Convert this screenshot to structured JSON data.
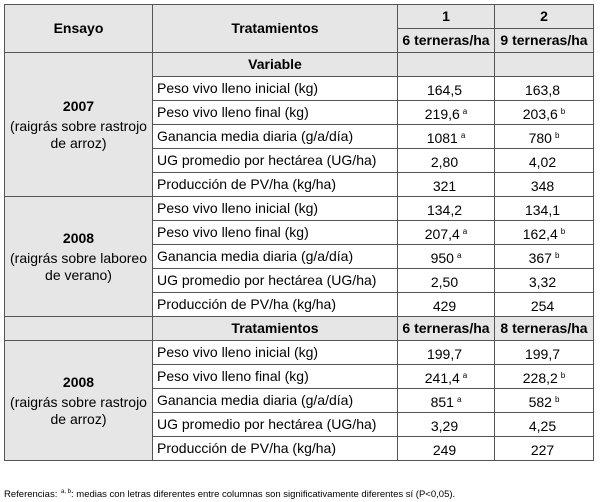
{
  "header": {
    "ensayo": "Ensayo",
    "tratamientos": "Tratamientos",
    "t1_num": "1",
    "t2_num": "2",
    "t1_label": "6 terneras/ha",
    "t2_label": "9 terneras/ha",
    "variable": "Variable"
  },
  "sections": [
    {
      "year": "2007",
      "desc": "(raigrás sobre rastrojo de arroz)",
      "rows": [
        {
          "label": "Peso vivo lleno inicial (kg)",
          "v1": "164,5",
          "s1": "",
          "v2": "163,8",
          "s2": ""
        },
        {
          "label": "Peso vivo lleno final (kg)",
          "v1": "219,6",
          "s1": "a",
          "v2": "203,6",
          "s2": "b"
        },
        {
          "label": "Ganancia media diaria (g/a/día)",
          "v1": "1081",
          "s1": "a",
          "v2": "780",
          "s2": "b"
        },
        {
          "label": "UG promedio por hectárea (UG/ha)",
          "v1": "2,80",
          "s1": "",
          "v2": "4,02",
          "s2": ""
        },
        {
          "label": "Producción de PV/ha (kg/ha)",
          "v1": "321",
          "s1": "",
          "v2": "348",
          "s2": ""
        }
      ]
    },
    {
      "year": "2008",
      "desc": "(raigrás sobre laboreo de verano)",
      "rows": [
        {
          "label": "Peso vivo lleno inicial (kg)",
          "v1": "134,2",
          "s1": "",
          "v2": "134,1",
          "s2": ""
        },
        {
          "label": "Peso vivo lleno final (kg)",
          "v1": "207,4",
          "s1": "a",
          "v2": "162,4",
          "s2": "b"
        },
        {
          "label": "Ganancia media diaria (g/a/día)",
          "v1": "950",
          "s1": "a",
          "v2": "367",
          "s2": "b"
        },
        {
          "label": "UG promedio por hectárea (UG/ha)",
          "v1": "2,50",
          "s1": "",
          "v2": "3,32",
          "s2": ""
        },
        {
          "label": "Producción de PV/ha (kg/ha)",
          "v1": "429",
          "s1": "",
          "v2": "254",
          "s2": ""
        }
      ]
    },
    {
      "year": "2008",
      "desc": "(raigrás sobre rastrojo de arroz)",
      "rows": [
        {
          "label": "Peso vivo lleno inicial (kg)",
          "v1": "199,7",
          "s1": "",
          "v2": "199,7",
          "s2": ""
        },
        {
          "label": "Peso vivo lleno final (kg)",
          "v1": "241,4",
          "s1": "a",
          "v2": "228,2",
          "s2": "b"
        },
        {
          "label": "Ganancia media diaria (g/a/día)",
          "v1": "851",
          "s1": "a",
          "v2": "582",
          "s2": "b"
        },
        {
          "label": "UG promedio por hectárea (UG/ha)",
          "v1": "3,29",
          "s1": "",
          "v2": "4,25",
          "s2": ""
        },
        {
          "label": "Producción de PV/ha (kg/ha)",
          "v1": "249",
          "s1": "",
          "v2": "227",
          "s2": ""
        }
      ]
    }
  ],
  "subheader": {
    "tratamientos": "Tratamientos",
    "t1_label": "6 terneras/ha",
    "t2_label": "8 terneras/ha"
  },
  "footnote": {
    "prefix": "Referencias: ",
    "marks": "a, b",
    "text": ": medias con letras diferentes entre columnas son significativamente diferentes sí (P<0,05)."
  }
}
